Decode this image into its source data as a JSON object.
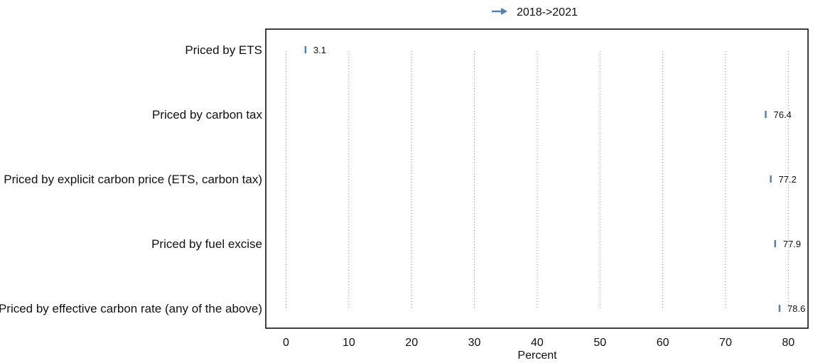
{
  "chart_data": {
    "type": "dot",
    "orientation": "horizontal",
    "legend": {
      "label": "2018->2021",
      "marker": "arrow-right",
      "position": "top-center"
    },
    "categories": [
      "Priced by ETS",
      "Priced by carbon tax",
      "Priced by explicit carbon price (ETS, carbon tax)",
      "Priced by fuel excise",
      "Priced by effective carbon rate (any of the above)"
    ],
    "series": [
      {
        "name": "2018->2021",
        "values": [
          3.1,
          76.4,
          77.2,
          77.9,
          78.6
        ],
        "value_labels": [
          "3.1",
          "76.4",
          "77.2",
          "77.9",
          "78.6"
        ],
        "color": "#4f81bd"
      }
    ],
    "xlabel": "Percent",
    "xlim": [
      -3,
      83
    ],
    "xticks": [
      0,
      10,
      20,
      30,
      40,
      50,
      60,
      70,
      80
    ],
    "grid": "vertical-dotted"
  }
}
